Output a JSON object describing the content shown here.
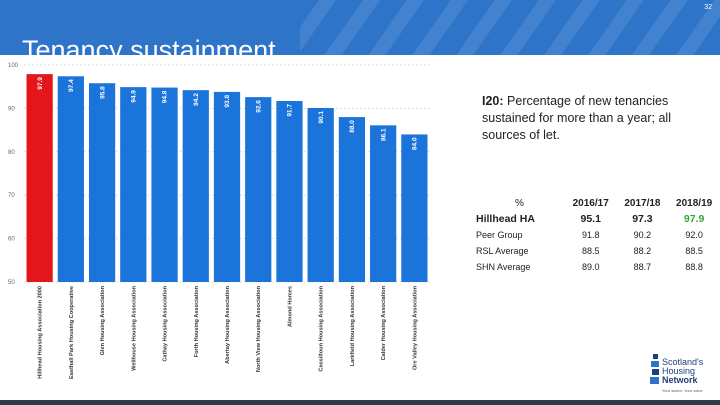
{
  "slide": {
    "title": "Tenancy sustainment",
    "page_number": "32"
  },
  "indicator": {
    "code": "I20:",
    "description": "Percentage of new tenancies sustained for more than a year; all sources of let."
  },
  "table": {
    "corner_label": "%",
    "columns": [
      "2016/17",
      "2017/18",
      "2018/19"
    ],
    "rows": [
      {
        "label": "Hillhead HA",
        "values": [
          "95.1",
          "97.3",
          "97.9"
        ]
      },
      {
        "label": "Peer Group",
        "values": [
          "91.8",
          "90.2",
          "92.0"
        ]
      },
      {
        "label": "RSL Average",
        "values": [
          "88.5",
          "88.2",
          "88.5"
        ]
      },
      {
        "label": "SHN Average",
        "values": [
          "89.0",
          "88.7",
          "88.8"
        ]
      }
    ]
  },
  "logo": {
    "lines": [
      "Scotland's",
      "Housing",
      "Network"
    ],
    "tagline": "Your sector, Your voice"
  },
  "colors": {
    "header": "#2e74c8",
    "highlight_bar": "#e3161b",
    "bar": "#1b74d9",
    "latest_value": "#3aa335"
  },
  "chart_data": {
    "type": "bar",
    "categories": [
      "Hillhead Housing Association 2000",
      "Easthall Park Housing Cooperative",
      "Glen Housing Association",
      "Wellhouse Housing Association",
      "Cathay Housing Association",
      "Forth Housing Association",
      "Abertay Housing Association",
      "North View Housing Association",
      "Almond Homes",
      "Cassiltoun Housing Association",
      "Larkfield Housing Association",
      "Calder Housing Association",
      "Ore Valley Housing Association"
    ],
    "values": [
      97.9,
      97.4,
      95.8,
      94.9,
      94.8,
      94.2,
      93.8,
      92.6,
      91.7,
      90.1,
      88.0,
      86.1,
      84.0
    ],
    "value_labels": [
      "97.9",
      "97.4",
      "95.8",
      "94.9",
      "94.8",
      "94.2",
      "93.8",
      "92.6",
      "91.7",
      "90.1",
      "88.0",
      "86.1",
      "84.0"
    ],
    "highlight_index": 0,
    "y_ticks": [
      100,
      90,
      80,
      70,
      60,
      50
    ],
    "ylim": [
      50,
      100
    ],
    "grid": "horizontal dotted"
  }
}
